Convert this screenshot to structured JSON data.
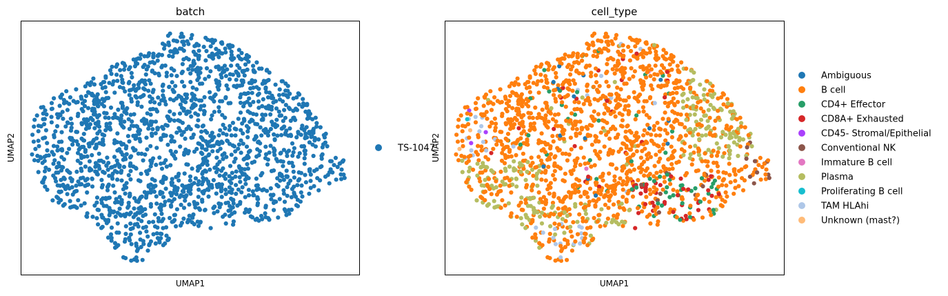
{
  "chart_data": [
    {
      "type": "scatter",
      "title": "batch",
      "xlabel": "UMAP1",
      "ylabel": "UMAP2",
      "xticks": "none",
      "yticks": "none",
      "grid": false,
      "legend_placement": "right",
      "categories": [
        {
          "name": "TS-1047",
          "color": "#1f77b4"
        }
      ],
      "xlim": [
        -1.0,
        1.0
      ],
      "ylim": [
        -1.0,
        1.0
      ],
      "points": "approx. 1800 cells forming a single cloud spanning the embedding"
    },
    {
      "type": "scatter",
      "title": "cell_type",
      "xlabel": "UMAP1",
      "ylabel": "UMAP2",
      "xticks": "none",
      "yticks": "none",
      "grid": false,
      "legend_placement": "right",
      "xlim": [
        -1.0,
        1.0
      ],
      "ylim": [
        -1.0,
        1.0
      ],
      "categories": [
        {
          "name": "Ambiguous",
          "color": "#1f77b4"
        },
        {
          "name": "B cell",
          "color": "#ff7f0e"
        },
        {
          "name": "CD4+ Effector",
          "color": "#279e68"
        },
        {
          "name": "CD8A+ Exhausted",
          "color": "#d62728"
        },
        {
          "name": "CD45- Stromal/Epithelial",
          "color": "#aa40fc"
        },
        {
          "name": "Conventional NK",
          "color": "#8c564b"
        },
        {
          "name": "Immature B cell",
          "color": "#e377c2"
        },
        {
          "name": "Plasma",
          "color": "#b5bd61"
        },
        {
          "name": "Proliferating B cell",
          "color": "#17becf"
        },
        {
          "name": "TAM HLAhi",
          "color": "#aec7e8"
        },
        {
          "name": "Unknown (mast?)",
          "color": "#ffbb78"
        }
      ]
    }
  ]
}
